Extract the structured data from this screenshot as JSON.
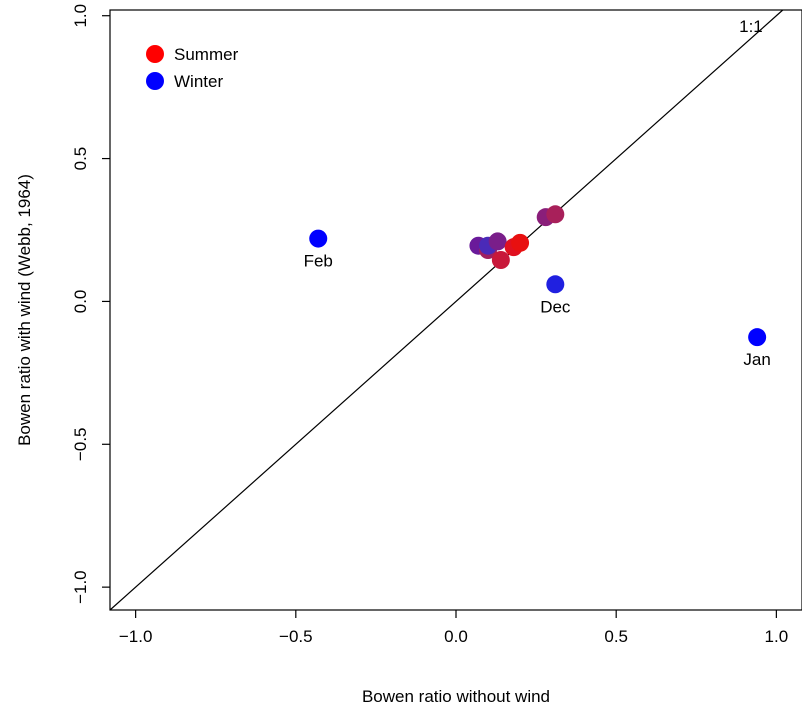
{
  "chart_data": {
    "type": "scatter",
    "xlabel": "Bowen ratio without wind",
    "ylabel": "Bowen ratio with wind (Webb, 1964)",
    "xlim": [
      -1.08,
      1.08
    ],
    "ylim": [
      -1.08,
      1.02
    ],
    "xticks": [
      {
        "value": -1.0,
        "label": "−1.0"
      },
      {
        "value": -0.5,
        "label": "−0.5"
      },
      {
        "value": 0.0,
        "label": "0.0"
      },
      {
        "value": 0.5,
        "label": "0.5"
      },
      {
        "value": 1.0,
        "label": "1.0"
      }
    ],
    "yticks": [
      {
        "value": -1.0,
        "label": "−1.0"
      },
      {
        "value": -0.5,
        "label": "−0.5"
      },
      {
        "value": 0.0,
        "label": "0.0"
      },
      {
        "value": 0.5,
        "label": "0.5"
      },
      {
        "value": 1.0,
        "label": "1.0"
      }
    ],
    "grid": false,
    "reference_line": {
      "slope": 1,
      "intercept": 0,
      "label": "1:1"
    },
    "legend": {
      "position": "top-left",
      "entries": [
        {
          "label": "Summer",
          "color": "#ff0000"
        },
        {
          "label": "Winter",
          "color": "#0000ff"
        }
      ]
    },
    "points": [
      {
        "x": -0.43,
        "y": 0.22,
        "color": "#0000ff",
        "label": "Feb"
      },
      {
        "x": 0.07,
        "y": 0.195,
        "color": "#6a1a9a",
        "label": ""
      },
      {
        "x": 0.1,
        "y": 0.18,
        "color": "#a0205e",
        "label": ""
      },
      {
        "x": 0.1,
        "y": 0.195,
        "color": "#4a2ab8",
        "label": ""
      },
      {
        "x": 0.13,
        "y": 0.21,
        "color": "#7a1e8a",
        "label": ""
      },
      {
        "x": 0.14,
        "y": 0.145,
        "color": "#c8183a",
        "label": ""
      },
      {
        "x": 0.18,
        "y": 0.19,
        "color": "#e01020",
        "label": ""
      },
      {
        "x": 0.2,
        "y": 0.205,
        "color": "#e81010",
        "label": ""
      },
      {
        "x": 0.28,
        "y": 0.295,
        "color": "#8a1e7a",
        "label": ""
      },
      {
        "x": 0.31,
        "y": 0.305,
        "color": "#a8205a",
        "label": ""
      },
      {
        "x": 0.31,
        "y": 0.06,
        "color": "#2020e0",
        "label": "Dec"
      },
      {
        "x": 0.94,
        "y": -0.125,
        "color": "#0000ff",
        "label": "Jan"
      }
    ]
  }
}
